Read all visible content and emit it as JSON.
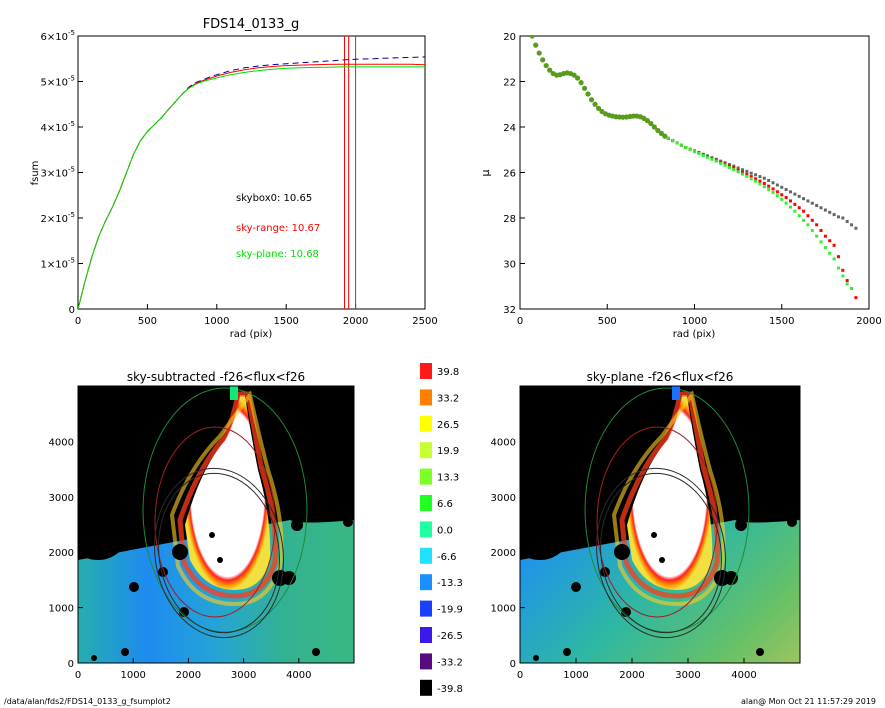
{
  "footer": {
    "path": "/data/alan/fds2/FDS14_0133_g_fsumplot2",
    "user_time": "alan@  Mon Oct 21 11:57:29 2019"
  },
  "chart_data": [
    {
      "type": "line",
      "title": "FDS14_0133_g",
      "xlabel": "rad (pix)",
      "ylabel": "fsum",
      "xlim": [
        0,
        2500
      ],
      "ylim": [
        0,
        6e-05
      ],
      "xticks": [
        "0",
        "500",
        "1000",
        "1500",
        "2000",
        "2500"
      ],
      "yticks": [
        {
          "mant": "0",
          "exp": ""
        },
        {
          "mant": "1×10",
          "exp": "-5"
        },
        {
          "mant": "2×10",
          "exp": "-5"
        },
        {
          "mant": "3×10",
          "exp": "-5"
        },
        {
          "mant": "4×10",
          "exp": "-5"
        },
        {
          "mant": "5×10",
          "exp": "-5"
        },
        {
          "mant": "6×10",
          "exp": "-5"
        }
      ],
      "annotations": [
        {
          "text": "skybox0: 10.65",
          "color": "#000000"
        },
        {
          "text": "sky-range: 10.67",
          "color": "#ff0000"
        },
        {
          "text": "sky-plane: 10.68",
          "color": "#00dd00"
        }
      ],
      "vlines": [
        {
          "x": 1920,
          "color": "#ff0000"
        },
        {
          "x": 1950,
          "color": "#ff0000"
        },
        {
          "x": 2000,
          "color": "#555555"
        }
      ],
      "series": [
        {
          "color": "#0000aa",
          "dash": true,
          "x": [
            0,
            50,
            100,
            150,
            200,
            250,
            300,
            350,
            400,
            450,
            500,
            550,
            600,
            650,
            700,
            750,
            800,
            850,
            900,
            950,
            1000,
            1100,
            1200,
            1300,
            1400,
            1500,
            1600,
            1700,
            1800,
            1900,
            2000,
            2100,
            2200,
            2300,
            2400,
            2500
          ],
          "y": [
            0,
            6e-06,
            1.15e-05,
            1.6e-05,
            1.95e-05,
            2.25e-05,
            2.6e-05,
            3e-05,
            3.4e-05,
            3.7e-05,
            3.9e-05,
            4.05e-05,
            4.2e-05,
            4.38e-05,
            4.55e-05,
            4.72e-05,
            4.88e-05,
            4.98e-05,
            5.04e-05,
            5.1e-05,
            5.15e-05,
            5.24e-05,
            5.3e-05,
            5.34e-05,
            5.37e-05,
            5.39e-05,
            5.41e-05,
            5.43e-05,
            5.45e-05,
            5.47e-05,
            5.49e-05,
            5.5e-05,
            5.51e-05,
            5.52e-05,
            5.53e-05,
            5.54e-05
          ]
        },
        {
          "color": "#ff0000",
          "dash": false,
          "x": [
            0,
            50,
            100,
            150,
            200,
            250,
            300,
            350,
            400,
            450,
            500,
            550,
            600,
            650,
            700,
            750,
            800,
            850,
            900,
            950,
            1000,
            1100,
            1200,
            1300,
            1400,
            1500,
            1600,
            1700,
            1800,
            1900,
            2000,
            2100,
            2200,
            2300,
            2400,
            2500
          ],
          "y": [
            0,
            6e-06,
            1.15e-05,
            1.6e-05,
            1.95e-05,
            2.25e-05,
            2.6e-05,
            3e-05,
            3.4e-05,
            3.7e-05,
            3.9e-05,
            4.05e-05,
            4.2e-05,
            4.38e-05,
            4.55e-05,
            4.72e-05,
            4.86e-05,
            4.96e-05,
            5.02e-05,
            5.07e-05,
            5.12e-05,
            5.2e-05,
            5.26e-05,
            5.3e-05,
            5.33e-05,
            5.35e-05,
            5.36e-05,
            5.37e-05,
            5.375e-05,
            5.38e-05,
            5.38e-05,
            5.38e-05,
            5.38e-05,
            5.38e-05,
            5.38e-05,
            5.37e-05
          ]
        },
        {
          "color": "#00dd00",
          "dash": false,
          "x": [
            0,
            50,
            100,
            150,
            200,
            250,
            300,
            350,
            400,
            450,
            500,
            550,
            600,
            650,
            700,
            750,
            800,
            850,
            900,
            950,
            1000,
            1100,
            1200,
            1300,
            1400,
            1500,
            1600,
            1700,
            1800,
            1900,
            2000,
            2100,
            2200,
            2300,
            2400,
            2500
          ],
          "y": [
            0,
            6e-06,
            1.15e-05,
            1.6e-05,
            1.95e-05,
            2.25e-05,
            2.6e-05,
            3e-05,
            3.4e-05,
            3.7e-05,
            3.9e-05,
            4.05e-05,
            4.2e-05,
            4.38e-05,
            4.55e-05,
            4.72e-05,
            4.85e-05,
            4.94e-05,
            5e-05,
            5.04e-05,
            5.08e-05,
            5.15e-05,
            5.2e-05,
            5.24e-05,
            5.27e-05,
            5.29e-05,
            5.3e-05,
            5.31e-05,
            5.315e-05,
            5.32e-05,
            5.32e-05,
            5.32e-05,
            5.32e-05,
            5.32e-05,
            5.32e-05,
            5.32e-05
          ]
        }
      ]
    },
    {
      "type": "scatter",
      "title": "",
      "xlabel": "rad (pix)",
      "ylabel": "μ",
      "xlim": [
        0,
        2000
      ],
      "ylim": [
        32,
        20
      ],
      "xticks": [
        "0",
        "500",
        "1000",
        "1500",
        "2000"
      ],
      "yticks": [
        "20",
        "22",
        "24",
        "26",
        "28",
        "30",
        "32"
      ],
      "inner_profile": {
        "color": "#5a9a1e",
        "x": [
          70,
          90,
          110,
          130,
          150,
          170,
          190,
          210,
          230,
          250,
          270,
          290,
          310,
          330,
          350,
          370,
          390,
          410,
          430,
          450,
          470,
          490,
          510,
          530,
          550,
          570,
          590,
          610,
          630,
          650,
          670,
          690,
          710,
          730,
          750,
          770,
          790,
          810,
          830
        ],
        "y": [
          20.0,
          20.4,
          20.75,
          21.05,
          21.3,
          21.5,
          21.65,
          21.72,
          21.7,
          21.65,
          21.62,
          21.65,
          21.72,
          21.85,
          22.05,
          22.3,
          22.55,
          22.8,
          23.0,
          23.18,
          23.32,
          23.42,
          23.48,
          23.52,
          23.55,
          23.56,
          23.57,
          23.56,
          23.54,
          23.52,
          23.52,
          23.55,
          23.62,
          23.72,
          23.85,
          24.0,
          24.15,
          24.28,
          24.4
        ]
      },
      "series": [
        {
          "name": "skybox0",
          "color": "#666666",
          "x": [
            850,
            875,
            900,
            925,
            950,
            975,
            1000,
            1025,
            1050,
            1075,
            1100,
            1125,
            1150,
            1175,
            1200,
            1225,
            1250,
            1275,
            1300,
            1325,
            1350,
            1375,
            1400,
            1425,
            1450,
            1475,
            1500,
            1525,
            1550,
            1575,
            1600,
            1625,
            1650,
            1675,
            1700,
            1725,
            1750,
            1775,
            1800,
            1825,
            1850,
            1875,
            1900,
            1925
          ],
          "y": [
            24.5,
            24.6,
            24.7,
            24.8,
            24.9,
            24.98,
            25.05,
            25.12,
            25.2,
            25.27,
            25.35,
            25.42,
            25.5,
            25.57,
            25.65,
            25.72,
            25.8,
            25.88,
            25.95,
            26.03,
            26.1,
            26.18,
            26.25,
            26.35,
            26.45,
            26.55,
            26.65,
            26.75,
            26.85,
            26.95,
            27.05,
            27.15,
            27.25,
            27.35,
            27.45,
            27.55,
            27.65,
            27.75,
            27.85,
            27.95,
            28.0,
            28.15,
            28.3,
            28.45
          ]
        },
        {
          "name": "sky-range",
          "color": "#ff0000",
          "x": [
            850,
            875,
            900,
            925,
            950,
            975,
            1000,
            1025,
            1050,
            1075,
            1100,
            1125,
            1150,
            1175,
            1200,
            1225,
            1250,
            1275,
            1300,
            1325,
            1350,
            1375,
            1400,
            1425,
            1450,
            1475,
            1500,
            1525,
            1550,
            1575,
            1600,
            1625,
            1650,
            1675,
            1700,
            1725,
            1750,
            1775,
            1800,
            1825,
            1850,
            1875,
            1900,
            1925
          ],
          "y": [
            24.5,
            24.6,
            24.7,
            24.8,
            24.9,
            24.98,
            25.06,
            25.14,
            25.22,
            25.3,
            25.38,
            25.46,
            25.55,
            25.63,
            25.72,
            25.8,
            25.9,
            26.0,
            26.08,
            26.18,
            26.28,
            26.38,
            26.48,
            26.6,
            26.72,
            26.85,
            26.98,
            27.1,
            27.25,
            27.4,
            27.55,
            27.7,
            27.9,
            28.1,
            28.3,
            28.55,
            28.8,
            29.0,
            29.2,
            29.7,
            30.3,
            30.75,
            31.1,
            31.5
          ]
        },
        {
          "name": "sky-plane",
          "color": "#33ee33",
          "x": [
            850,
            875,
            900,
            925,
            950,
            975,
            1000,
            1025,
            1050,
            1075,
            1100,
            1125,
            1150,
            1175,
            1200,
            1225,
            1250,
            1275,
            1300,
            1325,
            1350,
            1375,
            1400,
            1425,
            1450,
            1475,
            1500,
            1525,
            1550,
            1575,
            1600,
            1625,
            1650,
            1675,
            1700,
            1725,
            1750,
            1775,
            1800,
            1825,
            1850,
            1875,
            1900
          ],
          "y": [
            24.5,
            24.6,
            24.7,
            24.8,
            24.9,
            24.99,
            25.08,
            25.16,
            25.25,
            25.33,
            25.42,
            25.5,
            25.6,
            25.68,
            25.78,
            25.87,
            25.97,
            26.07,
            26.17,
            26.27,
            26.38,
            26.5,
            26.62,
            26.75,
            26.88,
            27.02,
            27.18,
            27.35,
            27.52,
            27.7,
            27.9,
            28.1,
            28.3,
            28.55,
            28.8,
            29.05,
            29.3,
            29.55,
            29.8,
            30.2,
            30.55,
            30.9,
            31.1
          ]
        }
      ]
    },
    {
      "type": "heatmap",
      "title": "sky-subtracted -f26<flux<f26",
      "xlim": [
        0,
        5000
      ],
      "ylim": [
        0,
        5000
      ],
      "xticks": [
        "0",
        "1000",
        "2000",
        "3000",
        "4000"
      ],
      "yticks": [
        "0",
        "1000",
        "2000",
        "3000",
        "4000"
      ]
    },
    {
      "type": "heatmap",
      "title": "sky-plane -f26<flux<f26",
      "xlim": [
        0,
        5000
      ],
      "ylim": [
        0,
        5000
      ],
      "xticks": [
        "0",
        "1000",
        "2000",
        "3000",
        "4000"
      ],
      "yticks": [
        "0",
        "1000",
        "2000",
        "3000",
        "4000"
      ]
    }
  ],
  "colorbar": {
    "labels": [
      "39.8",
      "33.2",
      "26.5",
      "19.9",
      "13.3",
      "6.6",
      "0.0",
      "-6.6",
      "-13.3",
      "-19.9",
      "-26.5",
      "-33.2",
      "-39.8"
    ],
    "colors": [
      "#ff1a1a",
      "#ff8000",
      "#ffff00",
      "#c8ff30",
      "#7dff28",
      "#22ff22",
      "#22ffa0",
      "#22e0ff",
      "#1a90ff",
      "#1a40ff",
      "#3a1ae6",
      "#5a0a80",
      "#000000"
    ]
  }
}
